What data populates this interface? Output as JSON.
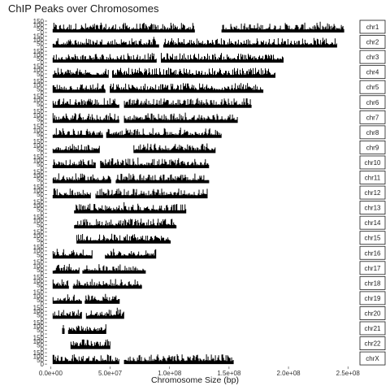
{
  "chart_data": {
    "type": "bar",
    "title": "ChIP Peaks over Chromosomes",
    "xlabel": "Chromosome Size (bp)",
    "ylabel": "",
    "xlim": [
      -3000000,
      256000000
    ],
    "x_ticks": [
      0,
      50000000,
      100000000,
      150000000,
      200000000,
      250000000
    ],
    "x_tick_labels": [
      "0.0e+00",
      "5.0e+07",
      "1.0e+08",
      "1.5e+08",
      "2.0e+08",
      "2.5e+08"
    ],
    "y_ticks": [
      0,
      50,
      100,
      150
    ],
    "y_tick_labels": [
      "0",
      "50",
      "100",
      "150"
    ],
    "ylim": [
      0,
      150
    ],
    "panel_labels": [
      "chr1",
      "chr2",
      "chr3",
      "chr4",
      "chr5",
      "chr6",
      "chr7",
      "chr8",
      "chr9",
      "chr10",
      "chr11",
      "chr12",
      "chr13",
      "chr14",
      "chr15",
      "chr16",
      "chr17",
      "chr18",
      "chr19",
      "chr20",
      "chr21",
      "chr22",
      "chrX"
    ],
    "panels": [
      {
        "chrom": "chr1",
        "length": 249000000,
        "segments": [
          [
            2000000,
            121000000
          ],
          [
            144000000,
            247000000
          ]
        ]
      },
      {
        "chrom": "chr2",
        "length": 243000000,
        "segments": [
          [
            2000000,
            91000000
          ],
          [
            95000000,
            241000000
          ]
        ]
      },
      {
        "chrom": "chr3",
        "length": 198000000,
        "segments": [
          [
            2000000,
            89000000
          ],
          [
            93000000,
            196000000
          ]
        ]
      },
      {
        "chrom": "chr4",
        "length": 191000000,
        "segments": [
          [
            2000000,
            49000000
          ],
          [
            52000000,
            189000000
          ]
        ]
      },
      {
        "chrom": "chr5",
        "length": 181000000,
        "segments": [
          [
            2000000,
            46000000
          ],
          [
            50000000,
            179000000
          ]
        ]
      },
      {
        "chrom": "chr6",
        "length": 171000000,
        "segments": [
          [
            2000000,
            58000000
          ],
          [
            62000000,
            169000000
          ]
        ]
      },
      {
        "chrom": "chr7",
        "length": 159000000,
        "segments": [
          [
            2000000,
            58000000
          ],
          [
            62000000,
            157000000
          ]
        ]
      },
      {
        "chrom": "chr8",
        "length": 146000000,
        "segments": [
          [
            2000000,
            44000000
          ],
          [
            47000000,
            144000000
          ]
        ]
      },
      {
        "chrom": "chr9",
        "length": 141000000,
        "segments": [
          [
            2000000,
            41000000
          ],
          [
            70000000,
            139000000
          ]
        ]
      },
      {
        "chrom": "chr10",
        "length": 135000000,
        "segments": [
          [
            2000000,
            38000000
          ],
          [
            42000000,
            133000000
          ]
        ]
      },
      {
        "chrom": "chr11",
        "length": 135000000,
        "segments": [
          [
            2000000,
            51000000
          ],
          [
            55000000,
            133000000
          ]
        ]
      },
      {
        "chrom": "chr12",
        "length": 133000000,
        "segments": [
          [
            2000000,
            34000000
          ],
          [
            38000000,
            132000000
          ]
        ]
      },
      {
        "chrom": "chr13",
        "length": 115000000,
        "segments": [
          [
            20000000,
            114000000
          ]
        ]
      },
      {
        "chrom": "chr14",
        "length": 107000000,
        "segments": [
          [
            20000000,
            106000000
          ]
        ]
      },
      {
        "chrom": "chr15",
        "length": 102000000,
        "segments": [
          [
            22000000,
            101000000
          ]
        ]
      },
      {
        "chrom": "chr16",
        "length": 90000000,
        "segments": [
          [
            2000000,
            35000000
          ],
          [
            46000000,
            89000000
          ]
        ]
      },
      {
        "chrom": "chr17",
        "length": 81000000,
        "segments": [
          [
            2000000,
            24000000
          ],
          [
            27000000,
            80000000
          ]
        ]
      },
      {
        "chrom": "chr18",
        "length": 78000000,
        "segments": [
          [
            2000000,
            15000000
          ],
          [
            19000000,
            77000000
          ]
        ]
      },
      {
        "chrom": "chr19",
        "length": 59000000,
        "segments": [
          [
            2000000,
            26000000
          ],
          [
            29000000,
            58000000
          ]
        ]
      },
      {
        "chrom": "chr20",
        "length": 63000000,
        "segments": [
          [
            2000000,
            26000000
          ],
          [
            30000000,
            62000000
          ]
        ]
      },
      {
        "chrom": "chr21",
        "length": 48000000,
        "segments": [
          [
            10000000,
            12000000
          ],
          [
            15000000,
            47000000
          ]
        ]
      },
      {
        "chrom": "chr22",
        "length": 51000000,
        "segments": [
          [
            17000000,
            50000000
          ]
        ]
      },
      {
        "chrom": "chrX",
        "length": 155000000,
        "segments": [
          [
            2000000,
            58000000
          ],
          [
            62000000,
            154000000
          ]
        ]
      }
    ],
    "grid": false,
    "legend": "none",
    "bar_color": "#000000"
  }
}
